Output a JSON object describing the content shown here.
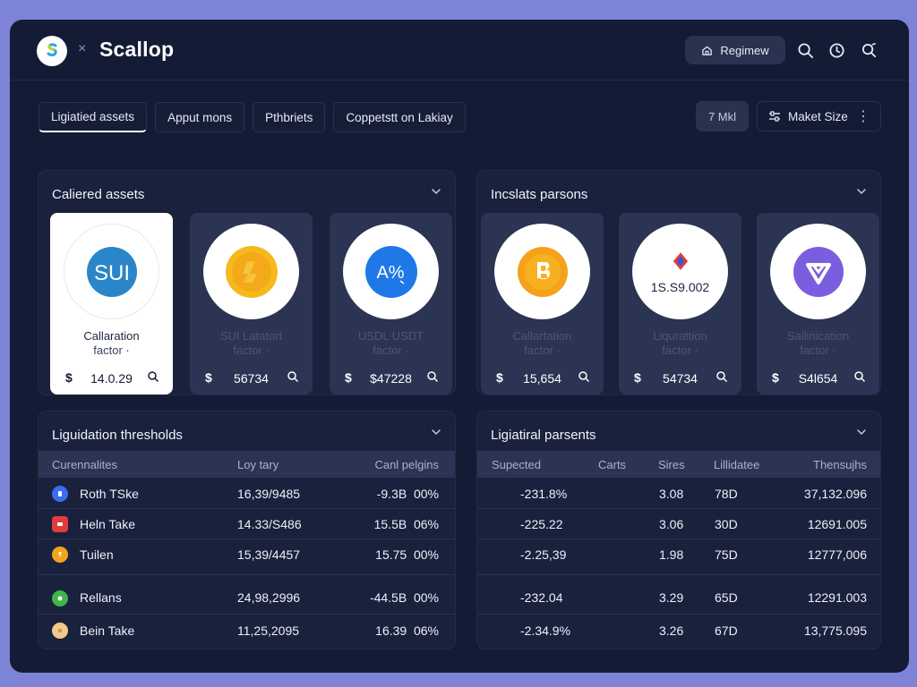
{
  "app": {
    "brand": "Scallop",
    "separator": "×"
  },
  "topbar": {
    "primary_button": "Regimew"
  },
  "tabs": [
    "Ligiatied assets",
    "Apput mons",
    "Pthbriets",
    "Coppetstt on Lakiay"
  ],
  "filters": {
    "period": "7 Mkl",
    "market_size": "Maket Size",
    "more": "⋮"
  },
  "panels": {
    "collateral": {
      "title": "Caliered assets",
      "cards": [
        {
          "symbol": "SUI",
          "name": "Callaration",
          "factor": "factor ·",
          "currency": "$",
          "value": "14.0.29",
          "style": "light",
          "icon": "sui"
        },
        {
          "symbol": "",
          "name": "SUI Latatort",
          "factor": "factor ·",
          "currency": "$",
          "value": "56734",
          "style": "dark",
          "icon": "gold-coin"
        },
        {
          "symbol": "A%",
          "name": "USDL USDT",
          "factor": "factor ·",
          "currency": "$",
          "value": "$47228",
          "style": "dark",
          "icon": "usdt"
        }
      ]
    },
    "insolvent": {
      "title": "Incslats parsons",
      "cards": [
        {
          "symbol": "",
          "name": "Callartation",
          "factor": "factor ·",
          "currency": "$",
          "value": "15,654",
          "style": "dark",
          "icon": "bitcoin"
        },
        {
          "symbol": "1S.S9.002",
          "name": "Liqurattion",
          "factor": "factor ·",
          "currency": "$",
          "value": "54734",
          "style": "dark",
          "icon": "diamond"
        },
        {
          "symbol": "",
          "name": "Sallinication",
          "factor": "factor ·",
          "currency": "$",
          "value": "S4l654",
          "style": "dark",
          "icon": "purple-token"
        }
      ]
    },
    "thresholds": {
      "title": "Liguidation thresholds",
      "columns": [
        "Curennalites",
        "Loy tary",
        "Canl pelgins"
      ],
      "rows": [
        {
          "name": "Roth TSke",
          "value": "16,39/9485",
          "pct": "-9.3B  00%",
          "icon_color": "#3b6df0"
        },
        {
          "name": "Heln Take",
          "value": "14.33/S486",
          "pct": "15.5B  06%",
          "icon_color": "#e23b3b"
        },
        {
          "name": "Tuilen",
          "value": "15,39/4457",
          "pct": "15.75  00%",
          "icon_color": "#f4a41b"
        },
        {
          "name": "Rellans",
          "value": "24,98,2996",
          "pct": "-44.5B  00%",
          "icon_color": "#3fb54a"
        },
        {
          "name": "Bein Take",
          "value": "11,25,2095",
          "pct": "16.39  06%",
          "icon_color": "#f1c98c"
        }
      ]
    },
    "positions": {
      "title": "Ligiatiral parsents",
      "columns": [
        "Supected",
        "Carts",
        "Sires",
        "Lillidatee",
        "Thensujhs"
      ],
      "rows": [
        {
          "a": "-231.8%",
          "b": "3.08",
          "c": "78D",
          "d": "37,132.096"
        },
        {
          "a": "-225.22",
          "b": "3.06",
          "c": "30D",
          "d": "12691.005"
        },
        {
          "a": "-2.25,39",
          "b": "1.98",
          "c": "75D",
          "d": "12777,006"
        },
        {
          "a": "-232.04",
          "b": "3.29",
          "c": "65D",
          "d": "12291.003"
        },
        {
          "a": "-2.34.9%",
          "b": "3.26",
          "c": "67D",
          "d": "13,775.095"
        }
      ]
    }
  },
  "colors": {
    "window": "#141b34",
    "panel": "#19213d",
    "card": "#2b3453",
    "page": "#7d84d8"
  }
}
